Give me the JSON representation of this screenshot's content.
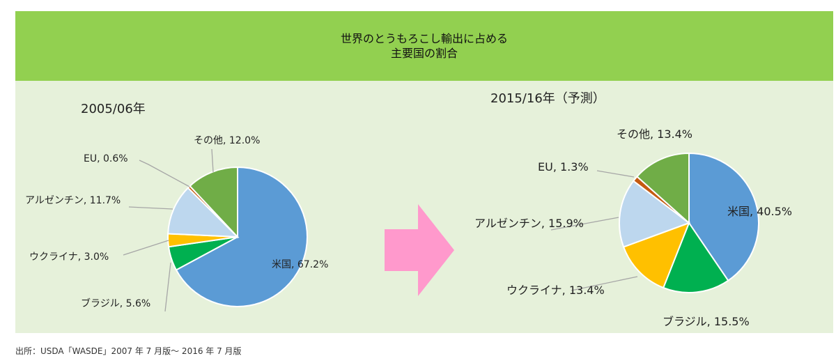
{
  "header": {
    "title_line1": "世界のとうもろこし輸出に占める",
    "title_line2": "主要国の割合"
  },
  "source": "出所：USDA「WASDE」2007 年 7 月版～ 2016 年 7 月版",
  "colors": {
    "header_bg": "#92d050",
    "panel_bg": "#e6f1da",
    "arrow": "#ff99cc",
    "us": "#5b9bd5",
    "brazil": "#00b050",
    "ukraine": "#ffc000",
    "argentina": "#bdd7ee",
    "eu": "#c55a11",
    "other": "#70ad47"
  },
  "chart_data": [
    {
      "type": "pie",
      "title": "2005/06年",
      "slices": [
        {
          "label": "米国, 67.2%",
          "value": 67.2,
          "color": "#5b9bd5"
        },
        {
          "label": "ブラジル, 5.6%",
          "value": 5.6,
          "color": "#00b050"
        },
        {
          "label": "ウクライナ, 3.0%",
          "value": 3.0,
          "color": "#ffc000"
        },
        {
          "label": "アルゼンチン, 11.7%",
          "value": 11.7,
          "color": "#bdd7ee"
        },
        {
          "label": "EU, 0.6%",
          "value": 0.6,
          "color": "#c55a11"
        },
        {
          "label": "その他, 12.0%",
          "value": 12.0,
          "color": "#70ad47"
        }
      ]
    },
    {
      "type": "pie",
      "title": "2015/16年（予測）",
      "slices": [
        {
          "label": "米国, 40.5%",
          "value": 40.5,
          "color": "#5b9bd5"
        },
        {
          "label": "ブラジル, 15.5%",
          "value": 15.5,
          "color": "#00b050"
        },
        {
          "label": "ウクライナ, 13.4%",
          "value": 13.4,
          "color": "#ffc000"
        },
        {
          "label": "アルゼンチン, 15.9%",
          "value": 15.9,
          "color": "#bdd7ee"
        },
        {
          "label": "EU, 1.3%",
          "value": 1.3,
          "color": "#c55a11"
        },
        {
          "label": "その他, 13.4%",
          "value": 13.4,
          "color": "#70ad47"
        }
      ]
    }
  ]
}
